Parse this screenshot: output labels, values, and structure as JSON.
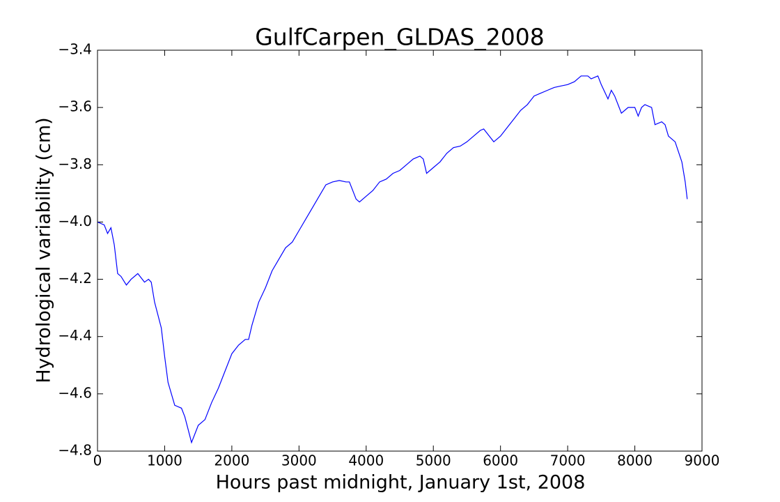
{
  "chart_data": {
    "type": "line",
    "title": "GulfCarpen_GLDAS_2008",
    "xlabel": "Hours past midnight, January 1st, 2008",
    "ylabel": "Hydrological variability (cm)",
    "x": [
      0,
      100,
      150,
      200,
      250,
      300,
      350,
      430,
      500,
      600,
      700,
      760,
      800,
      850,
      950,
      1000,
      1050,
      1150,
      1250,
      1300,
      1400,
      1450,
      1500,
      1600,
      1700,
      1800,
      1900,
      2000,
      2100,
      2200,
      2250,
      2300,
      2400,
      2500,
      2600,
      2700,
      2800,
      2900,
      3000,
      3100,
      3200,
      3300,
      3400,
      3500,
      3600,
      3700,
      3750,
      3850,
      3900,
      4000,
      4100,
      4200,
      4300,
      4400,
      4500,
      4600,
      4700,
      4800,
      4850,
      4900,
      5000,
      5100,
      5200,
      5300,
      5400,
      5500,
      5600,
      5700,
      5750,
      5800,
      5900,
      6000,
      6100,
      6200,
      6300,
      6400,
      6500,
      6600,
      6700,
      6800,
      6900,
      7000,
      7100,
      7200,
      7300,
      7350,
      7450,
      7500,
      7600,
      7650,
      7700,
      7800,
      7900,
      8000,
      8050,
      8100,
      8150,
      8250,
      8300,
      8400,
      8450,
      8500,
      8600,
      8700,
      8750,
      8780
    ],
    "series": [
      {
        "color": "#0000ff",
        "values": [
          -4.0,
          -4.01,
          -4.04,
          -4.02,
          -4.08,
          -4.18,
          -4.19,
          -4.22,
          -4.2,
          -4.18,
          -4.21,
          -4.2,
          -4.21,
          -4.28,
          -4.37,
          -4.47,
          -4.56,
          -4.64,
          -4.65,
          -4.68,
          -4.77,
          -4.74,
          -4.71,
          -4.69,
          -4.63,
          -4.58,
          -4.52,
          -4.46,
          -4.43,
          -4.41,
          -4.41,
          -4.36,
          -4.28,
          -4.23,
          -4.17,
          -4.13,
          -4.09,
          -4.07,
          -4.03,
          -3.99,
          -3.95,
          -3.91,
          -3.87,
          -3.86,
          -3.855,
          -3.86,
          -3.86,
          -3.92,
          -3.93,
          -3.91,
          -3.89,
          -3.86,
          -3.85,
          -3.83,
          -3.82,
          -3.8,
          -3.78,
          -3.77,
          -3.78,
          -3.83,
          -3.81,
          -3.79,
          -3.76,
          -3.74,
          -3.735,
          -3.72,
          -3.7,
          -3.68,
          -3.675,
          -3.69,
          -3.72,
          -3.7,
          -3.67,
          -3.64,
          -3.61,
          -3.59,
          -3.56,
          -3.55,
          -3.54,
          -3.53,
          -3.525,
          -3.52,
          -3.51,
          -3.49,
          -3.49,
          -3.5,
          -3.49,
          -3.52,
          -3.57,
          -3.54,
          -3.56,
          -3.62,
          -3.6,
          -3.6,
          -3.63,
          -3.6,
          -3.59,
          -3.6,
          -3.66,
          -3.65,
          -3.66,
          -3.7,
          -3.72,
          -3.79,
          -3.86,
          -3.92
        ]
      }
    ],
    "xlim": [
      0,
      9000
    ],
    "xticks": [
      0,
      1000,
      2000,
      3000,
      4000,
      5000,
      6000,
      7000,
      8000,
      9000
    ],
    "ylim": [
      -4.8,
      -3.4
    ],
    "yticks": [
      {
        "value": -4.8,
        "label": "−4.8"
      },
      {
        "value": -4.6,
        "label": "−4.6"
      },
      {
        "value": -4.4,
        "label": "−4.4"
      },
      {
        "value": -4.2,
        "label": "−4.2"
      },
      {
        "value": -4.0,
        "label": "−4.0"
      },
      {
        "value": -3.8,
        "label": "−3.8"
      },
      {
        "value": -3.6,
        "label": "−3.6"
      },
      {
        "value": -3.4,
        "label": "−3.4"
      }
    ],
    "grid": false
  }
}
